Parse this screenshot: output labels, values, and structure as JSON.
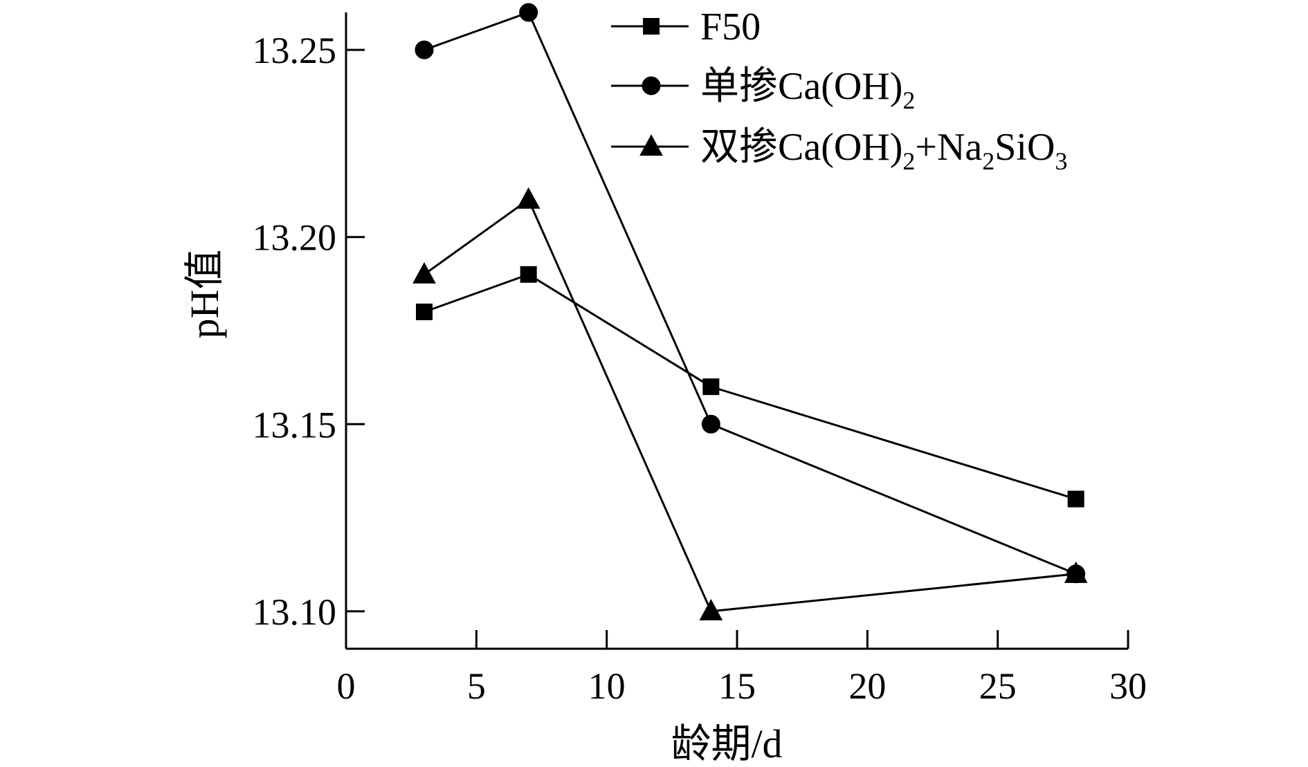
{
  "chart_data": {
    "type": "line",
    "title": "",
    "xlabel": "龄期/d",
    "ylabel": "pH值",
    "xlim": [
      0,
      30
    ],
    "ylim": [
      13.09,
      13.26
    ],
    "x_ticks": [
      {
        "value": 0,
        "label": "0"
      },
      {
        "value": 5,
        "label": "5"
      },
      {
        "value": 10,
        "label": "10"
      },
      {
        "value": 15,
        "label": "15"
      },
      {
        "value": 20,
        "label": "20"
      },
      {
        "value": 25,
        "label": "25"
      },
      {
        "value": 30,
        "label": "30"
      }
    ],
    "y_ticks": [
      {
        "value": 13.1,
        "label": "13.10"
      },
      {
        "value": 13.15,
        "label": "13.15"
      },
      {
        "value": 13.2,
        "label": "13.20"
      },
      {
        "value": 13.25,
        "label": "13.25"
      }
    ],
    "grid": false,
    "legend_position": "top-right",
    "line_color": "#000000",
    "series": [
      {
        "name": "F50",
        "legend": {
          "parts": [
            {
              "text": "F50",
              "sub": false
            }
          ]
        },
        "marker": "square",
        "x": [
          3,
          7,
          14,
          28
        ],
        "values": [
          13.18,
          13.19,
          13.16,
          13.13
        ]
      },
      {
        "name": "单掺Ca(OH)2",
        "legend": {
          "parts": [
            {
              "text": "单掺Ca(OH)",
              "sub": false
            },
            {
              "text": "2",
              "sub": true
            }
          ]
        },
        "marker": "circle",
        "x": [
          3,
          7,
          14,
          28
        ],
        "values": [
          13.25,
          13.26,
          13.15,
          13.11
        ]
      },
      {
        "name": "双掺Ca(OH)2+Na2SiO3",
        "legend": {
          "parts": [
            {
              "text": "双掺Ca(OH)",
              "sub": false
            },
            {
              "text": "2",
              "sub": true
            },
            {
              "text": "+Na",
              "sub": false
            },
            {
              "text": "2",
              "sub": true
            },
            {
              "text": "SiO",
              "sub": false
            },
            {
              "text": "3",
              "sub": true
            }
          ]
        },
        "marker": "triangle",
        "x": [
          3,
          7,
          14,
          28
        ],
        "values": [
          13.19,
          13.21,
          13.1,
          13.11
        ]
      }
    ]
  }
}
